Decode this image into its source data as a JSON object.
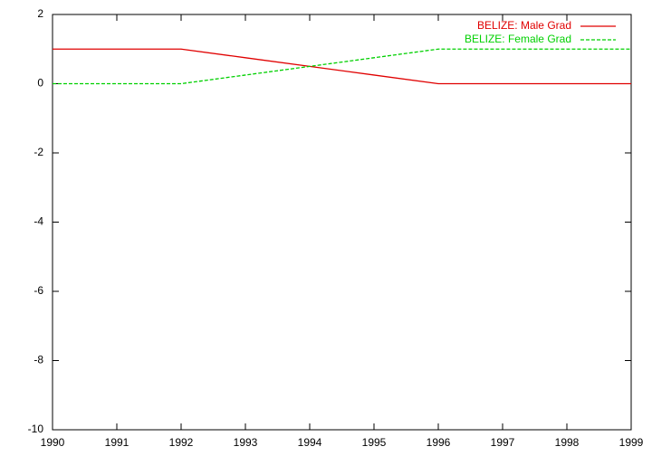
{
  "chart_data": {
    "type": "line",
    "x": [
      1990,
      1991,
      1992,
      1993,
      1994,
      1995,
      1996,
      1997,
      1998,
      1999
    ],
    "series": [
      {
        "name": "BELIZE: Male Grad",
        "color": "#e00000",
        "line_style": "solid",
        "values": [
          1,
          1,
          1,
          0.75,
          0.5,
          0.25,
          0,
          0,
          0,
          0
        ]
      },
      {
        "name": "BELIZE: Female Grad",
        "color": "#00d000",
        "line_style": "dashed",
        "values": [
          0,
          0,
          0,
          0.25,
          0.5,
          0.75,
          1,
          1,
          1,
          1
        ]
      }
    ],
    "xlim": [
      1990,
      1999
    ],
    "xticks": [
      1990,
      1991,
      1992,
      1993,
      1994,
      1995,
      1996,
      1997,
      1998,
      1999
    ],
    "ylim": [
      -10,
      2
    ],
    "yticks": [
      -10,
      -8,
      -6,
      -4,
      -2,
      0,
      2
    ],
    "legend": "top right",
    "grid": false
  }
}
